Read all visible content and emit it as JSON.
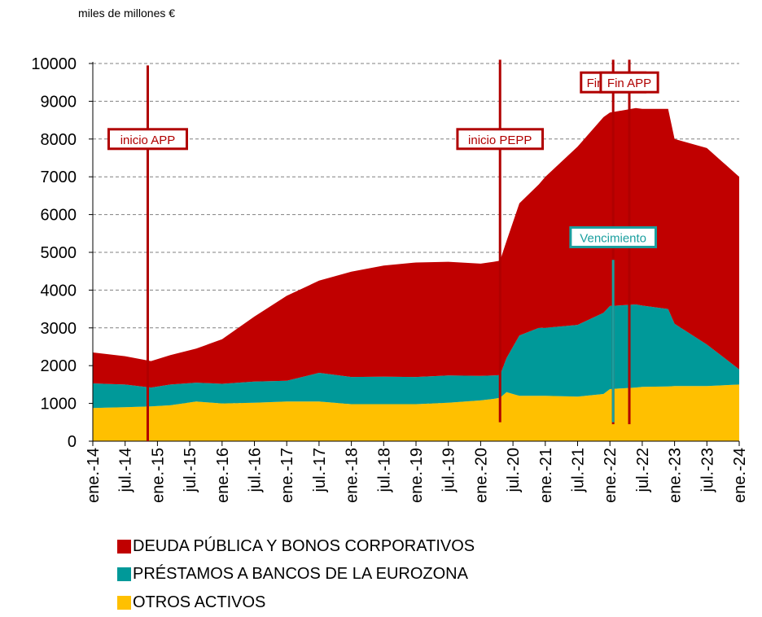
{
  "unit_label": "miles de millones €",
  "chart_data": {
    "type": "area",
    "stacked": true,
    "ylim": [
      0,
      10000
    ],
    "yticks": [
      0,
      1000,
      2000,
      3000,
      4000,
      5000,
      6000,
      7000,
      8000,
      9000,
      10000
    ],
    "xlim": [
      2014.0,
      2024.0
    ],
    "xtick_labels": [
      "ene.-14",
      "jul.-14",
      "ene.-15",
      "jul.-15",
      "ene.-16",
      "jul.-16",
      "ene.-17",
      "jul.-17",
      "ene.-18",
      "jul.-18",
      "ene.-19",
      "jul.-19",
      "ene.-20",
      "jul.-20",
      "ene.-21",
      "jul.-21",
      "ene.-22",
      "jul.-22",
      "ene.-23",
      "jul.-23",
      "ene.-24"
    ],
    "grid": "horizontal-dashed",
    "legend_position": "bottom",
    "colors": {
      "deuda": "#c00000",
      "prestamos": "#009999",
      "otros": "#ffc000",
      "annotation_red": "#b00000",
      "annotation_teal": "#1a9f9f"
    },
    "series": [
      {
        "name": "OTROS ACTIVOS",
        "color": "#ffc000",
        "x": [
          2014.0,
          2014.5,
          2014.9,
          2015.2,
          2015.6,
          2016.0,
          2016.5,
          2017.0,
          2017.5,
          2018.0,
          2018.5,
          2019.0,
          2019.5,
          2020.0,
          2020.2,
          2020.3,
          2020.4,
          2020.6,
          2020.9,
          2021.0,
          2021.5,
          2021.9,
          2022.0,
          2022.4,
          2022.5,
          2022.9,
          2023.0,
          2023.5,
          2024.0
        ],
        "values": [
          880,
          900,
          920,
          950,
          1050,
          1000,
          1020,
          1050,
          1050,
          980,
          980,
          980,
          1020,
          1080,
          1120,
          1150,
          1300,
          1200,
          1200,
          1200,
          1180,
          1250,
          1380,
          1420,
          1440,
          1450,
          1460,
          1460,
          1500
        ]
      },
      {
        "name": "PRÉSTAMOS A BANCOS DE LA EUROZONA",
        "color": "#009999",
        "x": [
          2014.0,
          2014.5,
          2014.9,
          2015.2,
          2015.6,
          2016.0,
          2016.5,
          2017.0,
          2017.5,
          2018.0,
          2018.5,
          2019.0,
          2019.5,
          2020.0,
          2020.2,
          2020.3,
          2020.4,
          2020.6,
          2020.9,
          2021.0,
          2021.5,
          2021.9,
          2022.0,
          2022.4,
          2022.5,
          2022.9,
          2023.0,
          2023.5,
          2024.0
        ],
        "values": [
          650,
          600,
          500,
          550,
          500,
          520,
          560,
          550,
          760,
          720,
          730,
          720,
          720,
          650,
          620,
          600,
          900,
          1600,
          1800,
          1800,
          1900,
          2150,
          2200,
          2200,
          2150,
          2050,
          1650,
          1100,
          400
        ]
      },
      {
        "name": "DEUDA PÚBLICA Y BONOS CORPORATIVOS",
        "color": "#c00000",
        "x": [
          2014.0,
          2014.5,
          2014.9,
          2015.2,
          2015.6,
          2016.0,
          2016.5,
          2017.0,
          2017.5,
          2018.0,
          2018.5,
          2019.0,
          2019.5,
          2020.0,
          2020.2,
          2020.3,
          2020.4,
          2020.6,
          2020.9,
          2021.0,
          2021.5,
          2021.9,
          2022.0,
          2022.4,
          2022.5,
          2022.9,
          2023.0,
          2023.5,
          2024.0
        ],
        "values": [
          820,
          750,
          700,
          780,
          900,
          1180,
          1720,
          2250,
          2440,
          2790,
          2940,
          3030,
          3010,
          2970,
          3010,
          3030,
          3100,
          3500,
          3800,
          4000,
          4720,
          5180,
          5120,
          5200,
          5210,
          5300,
          4890,
          5200,
          5100
        ]
      }
    ],
    "annotations": [
      {
        "label": "inicio APP",
        "x": 2014.85,
        "line_from": 0,
        "line_to": 9950,
        "box_y": 8000,
        "color": "#b00000"
      },
      {
        "label": "inicio PEPP",
        "x": 2020.3,
        "line_from": 500,
        "line_to": 10100,
        "box_y": 8000,
        "color": "#b00000"
      },
      {
        "label": "Fin PEPP",
        "x": 2022.05,
        "line_from": 450,
        "line_to": 10100,
        "box_y": 9500,
        "color": "#b00000"
      },
      {
        "label": "Fin APP",
        "x": 2022.3,
        "line_from": 450,
        "line_to": 10100,
        "box_y": 9500,
        "color": "#b00000"
      },
      {
        "label": "Vencimiento",
        "x": 2022.05,
        "line_from": 500,
        "line_to": 4800,
        "box_y": 5400,
        "color": "#1a9f9f"
      }
    ]
  }
}
